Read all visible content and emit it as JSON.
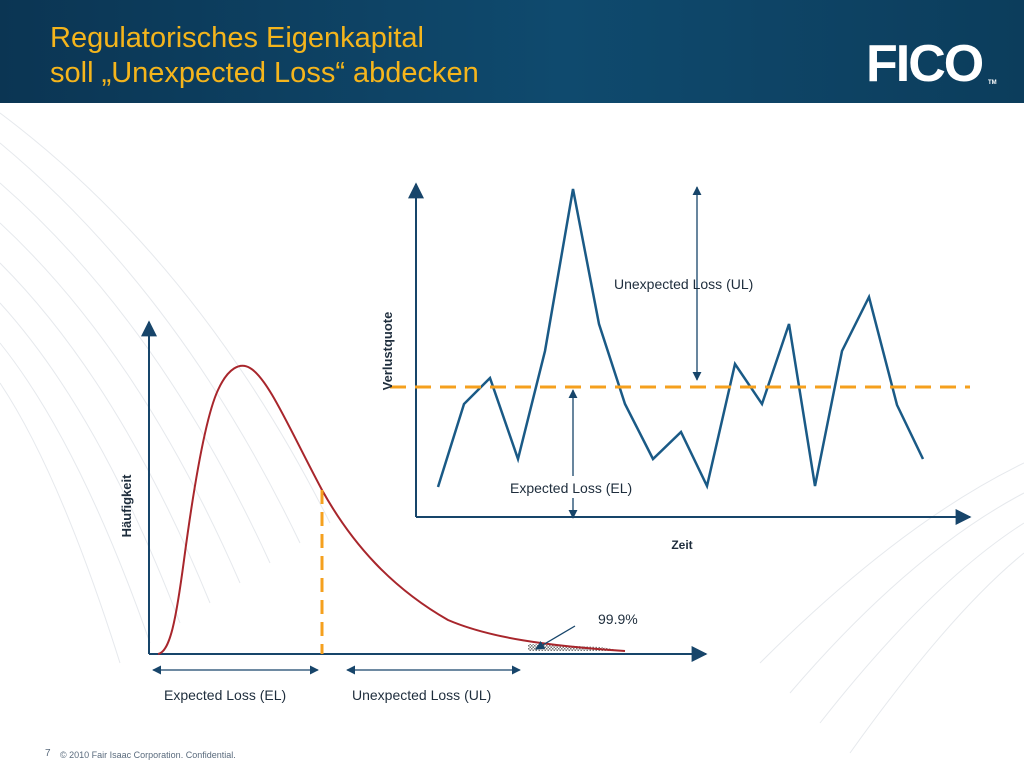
{
  "header": {
    "title_line1": "Regulatorisches Eigenkapital",
    "title_line2": "soll „Unexpected Loss“ abdecken",
    "logo_text": "FICO",
    "logo_tm": "TM"
  },
  "time_chart": {
    "y_label": "Verlustquote",
    "x_label": "Zeit",
    "ul_label": "Unexpected Loss (UL)",
    "el_label": "Expected Loss (EL)",
    "line_color": "#1a5a86",
    "el_line_color": "#f5a01e"
  },
  "distribution_chart": {
    "y_label": "Häufigkeit",
    "tail_label": "99.9%",
    "el_label": "Expected Loss (EL)",
    "ul_label": "Unexpected Loss (UL)",
    "curve_color": "#a8262c",
    "axis_color": "#17456a"
  },
  "footer": {
    "page_number": "7",
    "copyright": "© 2010 Fair Isaac Corporation. Confidential."
  }
}
